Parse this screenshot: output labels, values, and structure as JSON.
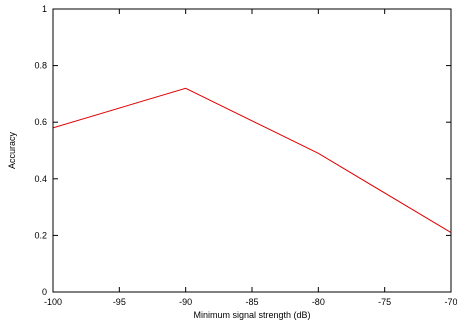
{
  "chart_data": {
    "type": "line",
    "title": "",
    "xlabel": "Minimum signal strength (dB)",
    "ylabel": "Accuracy",
    "xlim": [
      -100,
      -70
    ],
    "ylim": [
      0,
      1
    ],
    "xticks": [
      -100,
      -95,
      -90,
      -85,
      -80,
      -75,
      -70
    ],
    "yticks": [
      0,
      0.2,
      0.4,
      0.6,
      0.8,
      1
    ],
    "xtick_labels": [
      "-100",
      "-95",
      "-90",
      "-85",
      "-80",
      "-75",
      "-70"
    ],
    "ytick_labels": [
      "0",
      "0.2",
      "0.4",
      "0.6",
      "0.8",
      "1"
    ],
    "grid": false,
    "legend": "none",
    "series": [
      {
        "color": "#e00000",
        "x": [
          -100,
          -90,
          -80,
          -70
        ],
        "y": [
          0.58,
          0.72,
          0.49,
          0.21
        ]
      }
    ]
  }
}
